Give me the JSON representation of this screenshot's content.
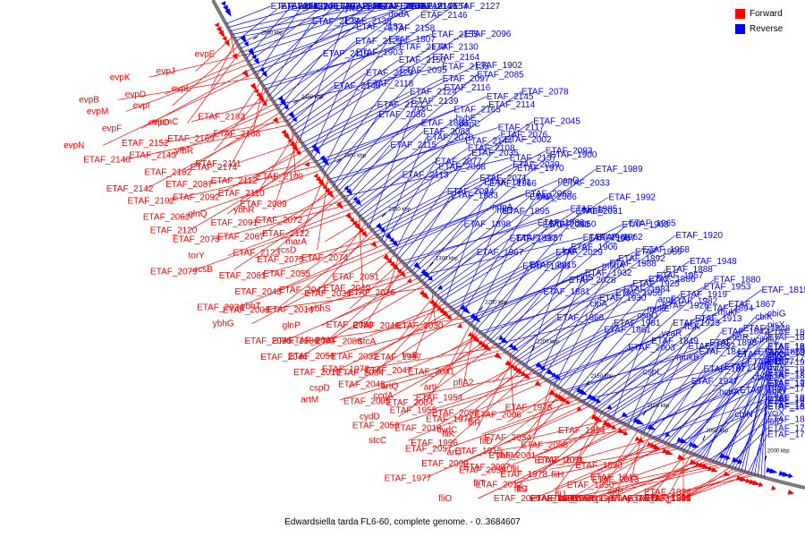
{
  "legend": {
    "forward_label": "Forward",
    "reverse_label": "Reverse",
    "forward_color": "#ff0000",
    "reverse_color": "#0000ff"
  },
  "caption": "Edwardsiella tarda FL6-60, complete genome. - 0..3684607",
  "scale_ticks": [
    {
      "text": "2500 kbp",
      "kbp": 2500
    },
    {
      "text": "2450 kbp",
      "kbp": 2450
    },
    {
      "text": "2400 kbp",
      "kbp": 2400
    },
    {
      "text": "2350 kbp",
      "kbp": 2350
    },
    {
      "text": "2300 kbp",
      "kbp": 2300
    },
    {
      "text": "2250 kbp",
      "kbp": 2250
    },
    {
      "text": "2200 kbp",
      "kbp": 2200
    },
    {
      "text": "2150 kbp",
      "kbp": 2150
    },
    {
      "text": "2100 kbp",
      "kbp": 2100
    },
    {
      "text": "2050 kbp",
      "kbp": 2050
    },
    {
      "text": "2000 kbp",
      "kbp": 2000
    }
  ],
  "labels": [
    {
      "t": "ETAF_2214",
      "s": "R"
    },
    {
      "t": "aroG",
      "s": "R"
    },
    {
      "t": "evpE",
      "s": "F"
    },
    {
      "t": "ETAF_2216",
      "s": "R"
    },
    {
      "t": "evpJ",
      "s": "F"
    },
    {
      "t": "evpL",
      "s": "F"
    },
    {
      "t": "evpI",
      "s": "F"
    },
    {
      "t": "sixA",
      "s": "R"
    },
    {
      "t": "evpO",
      "s": "F"
    },
    {
      "t": "evpK",
      "s": "F"
    },
    {
      "t": "evpD",
      "s": "F"
    },
    {
      "t": "ETAF_2191",
      "s": "R"
    },
    {
      "t": "evpM",
      "s": "F"
    },
    {
      "t": "evpF",
      "s": "F"
    },
    {
      "t": "ETAF_2182",
      "s": "R"
    },
    {
      "t": "ETAF_2193",
      "s": "R"
    },
    {
      "t": "evpN",
      "s": "F"
    },
    {
      "t": "evpB",
      "s": "F"
    },
    {
      "t": "ETAF_2173",
      "s": "R"
    },
    {
      "t": "ETAF_2186",
      "s": "R"
    },
    {
      "t": "ETAF_2196",
      "s": "R"
    },
    {
      "t": "ETAF_2183",
      "s": "F"
    },
    {
      "t": "ETAF_2168",
      "s": "F"
    },
    {
      "t": "yfbR",
      "s": "F"
    },
    {
      "t": "ETAF_2190",
      "s": "R"
    },
    {
      "t": "ETAF_2174",
      "s": "F"
    },
    {
      "t": "yrbU",
      "s": "R"
    },
    {
      "t": "ETAF_2153",
      "s": "R"
    },
    {
      "t": "mnmC",
      "s": "F"
    },
    {
      "t": "dedA",
      "s": "R"
    },
    {
      "t": "ETAF_2169",
      "s": "F"
    },
    {
      "t": "ETAF_2143",
      "s": "F"
    },
    {
      "t": "ETAF_2154",
      "s": "R"
    },
    {
      "t": "ubiX",
      "s": "R"
    },
    {
      "t": "ETAF_2162",
      "s": "F"
    },
    {
      "t": "ETAF_2149",
      "s": "R"
    },
    {
      "t": "ETAF_2136",
      "s": "R"
    },
    {
      "t": "ETAF_2170",
      "s": "R"
    },
    {
      "t": "ETAF_2155",
      "s": "R"
    },
    {
      "t": "ETAF_2142",
      "s": "F"
    },
    {
      "t": "ETAF_2128",
      "s": "R"
    },
    {
      "t": "yfcD",
      "s": "R"
    },
    {
      "t": "ETAF_2160",
      "s": "R"
    },
    {
      "t": "ETAF_2147",
      "s": "R"
    },
    {
      "t": "ETAF_2135",
      "s": "R"
    },
    {
      "t": "ETAF_2119",
      "s": "R"
    },
    {
      "t": "ETAF_2152",
      "s": "F"
    },
    {
      "t": "ETAF_2140",
      "s": "F"
    },
    {
      "t": "ETAF_2125",
      "s": "R"
    },
    {
      "t": "ETAF_2109",
      "s": "F"
    },
    {
      "t": "ETAF_2158",
      "s": "R"
    },
    {
      "t": "ETAF_2146",
      "s": "R"
    },
    {
      "t": "ETAF_2127",
      "s": "R"
    },
    {
      "t": "ETAF_2110",
      "s": "F"
    },
    {
      "t": "ybhR",
      "s": "F"
    },
    {
      "t": "ETAF_2148",
      "s": "R"
    },
    {
      "t": "ETAF_2129",
      "s": "R"
    },
    {
      "t": "ETAF_2111",
      "s": "F"
    },
    {
      "t": "ETAF_2150",
      "s": "R"
    },
    {
      "t": "ETAF_2130",
      "s": "R"
    },
    {
      "t": "ETAF_2112",
      "s": "F"
    },
    {
      "t": "ETAF_2092",
      "s": "F"
    },
    {
      "t": "ETAF_2096",
      "s": "R"
    },
    {
      "t": "glnQ",
      "s": "F"
    },
    {
      "t": "ETAF_2138",
      "s": "R"
    },
    {
      "t": "ETAF_2120",
      "s": "F"
    },
    {
      "t": "ETAF_2087",
      "s": "F"
    },
    {
      "t": "ETAF_2121",
      "s": "R"
    },
    {
      "t": "ETAF_2102",
      "s": "F"
    },
    {
      "t": "ETAF_2062",
      "s": "F"
    },
    {
      "t": "ETAF_2122",
      "s": "F"
    },
    {
      "t": "rcsD",
      "s": "F"
    },
    {
      "t": "ETAF_2089",
      "s": "F"
    },
    {
      "t": "ETAF_2072",
      "s": "F"
    },
    {
      "t": "ETAF_2067",
      "s": "F"
    },
    {
      "t": "ETAF_2123",
      "s": "F"
    },
    {
      "t": "rcsB",
      "s": "F"
    },
    {
      "t": "ETAF_2091",
      "s": "F"
    },
    {
      "t": "ETAF_2073",
      "s": "F"
    },
    {
      "t": "torY",
      "s": "F"
    },
    {
      "t": "ETAF_2124",
      "s": "R"
    },
    {
      "t": "ETAF_2097",
      "s": "R"
    },
    {
      "t": "ETAF_2079",
      "s": "F"
    },
    {
      "t": "ETAF_2049",
      "s": "F"
    },
    {
      "t": "marA",
      "s": "F"
    },
    {
      "t": "ETAF_2074",
      "s": "F"
    },
    {
      "t": "ETAF_2055",
      "s": "F"
    },
    {
      "t": "ETAF_2042",
      "s": "F"
    },
    {
      "t": "ybhT",
      "s": "F"
    },
    {
      "t": "ETAF_2075",
      "s": "F"
    },
    {
      "t": "ETAF_2061",
      "s": "F"
    },
    {
      "t": "ETAF_2043",
      "s": "F"
    },
    {
      "t": "ETAF_2034",
      "s": "F"
    },
    {
      "t": "ybhG",
      "s": "F"
    },
    {
      "t": "ETAF_2051",
      "s": "F"
    },
    {
      "t": "ETAF_2026",
      "s": "F"
    },
    {
      "t": "ybhS",
      "s": "F"
    },
    {
      "t": "ETAF_2080",
      "s": "F"
    },
    {
      "t": "ETAF_2064",
      "s": "F"
    },
    {
      "t": "ETAF_2036",
      "s": "F"
    },
    {
      "t": "ETAF_2014",
      "s": "F"
    },
    {
      "t": "glnP",
      "s": "F"
    },
    {
      "t": "ETAF_2065",
      "s": "F"
    },
    {
      "t": "ETAF_2044",
      "s": "F"
    },
    {
      "t": "ETAF_2008",
      "s": "F"
    },
    {
      "t": "ETAF_2030",
      "s": "F"
    },
    {
      "t": "stcA",
      "s": "F"
    },
    {
      "t": "ETAF_1997",
      "s": "F"
    },
    {
      "t": "ETAF_2084",
      "s": "F"
    },
    {
      "t": "ETAF_2046",
      "s": "F"
    },
    {
      "t": "ETAF_2088",
      "s": "F"
    },
    {
      "t": "ETAF_2032",
      "s": "F"
    },
    {
      "t": "ETAF_2010",
      "s": "F"
    },
    {
      "t": "cspD",
      "s": "F"
    },
    {
      "t": "ETAF_1980",
      "s": "F"
    },
    {
      "t": "ETAF_2056",
      "s": "F"
    },
    {
      "t": "ETAF_2041",
      "s": "F"
    },
    {
      "t": "artI",
      "s": "F"
    },
    {
      "t": "ETAF_2004",
      "s": "F"
    },
    {
      "t": "trxB",
      "s": "F"
    },
    {
      "t": "ETAF_2047",
      "s": "F"
    },
    {
      "t": "artQ",
      "s": "F"
    },
    {
      "t": "ETAF_2005",
      "s": "F"
    },
    {
      "t": "cydD",
      "s": "F"
    },
    {
      "t": "ETAF_1972",
      "s": "F"
    },
    {
      "t": "ETAF_2048",
      "s": "F"
    },
    {
      "t": "artM",
      "s": "F"
    },
    {
      "t": "ETAF_2006",
      "s": "F"
    },
    {
      "t": "cydC",
      "s": "F"
    },
    {
      "t": "pflA2",
      "s": "F"
    },
    {
      "t": "ETAF_1954",
      "s": "F"
    },
    {
      "t": "ETAF_2052",
      "s": "F"
    },
    {
      "t": "ETAF_2018",
      "s": "F"
    },
    {
      "t": "ETAF_1996",
      "s": "F"
    },
    {
      "t": "ccdA",
      "s": "F"
    },
    {
      "t": "ETAF_1955",
      "s": "F"
    },
    {
      "t": "ETAF_2053",
      "s": "F"
    },
    {
      "t": "stcC",
      "s": "F"
    },
    {
      "t": "ETAF_2001",
      "s": "F"
    },
    {
      "t": "ETAF_1973",
      "s": "F"
    },
    {
      "t": "fliR",
      "s": "F"
    },
    {
      "t": "ETAF_2054",
      "s": "F"
    },
    {
      "t": "artJ",
      "s": "F"
    },
    {
      "t": "ETAF_2007",
      "s": "F"
    },
    {
      "t": "ETAF_1974",
      "s": "F"
    },
    {
      "t": "fliK",
      "s": "F"
    },
    {
      "t": "ETAF_2057",
      "s": "F"
    },
    {
      "t": "ETAF_2009",
      "s": "F"
    },
    {
      "t": "ETAF_1977",
      "s": "F"
    },
    {
      "t": "ETAF_1924",
      "s": "F"
    },
    {
      "t": "ETAF_2058",
      "s": "F"
    },
    {
      "t": "ETAF_2011",
      "s": "F"
    },
    {
      "t": "ETAF_1978",
      "s": "F"
    },
    {
      "t": "fliJ",
      "s": "F"
    },
    {
      "t": "fliD",
      "s": "F"
    },
    {
      "t": "ybbM",
      "s": "F"
    },
    {
      "t": "ETAF_2059",
      "s": "F"
    },
    {
      "t": "ETAF_2012",
      "s": "F"
    },
    {
      "t": "fliO",
      "s": "F"
    },
    {
      "t": "ETAF_1915",
      "s": "F"
    },
    {
      "t": "ETAF_1890",
      "s": "F"
    },
    {
      "t": "ETAF_2013",
      "s": "F"
    },
    {
      "t": "fliJ",
      "s": "F"
    },
    {
      "t": "ETAF_1907",
      "s": "F"
    },
    {
      "t": "ETAF_1879",
      "s": "F"
    },
    {
      "t": "fliH",
      "s": "F"
    },
    {
      "t": "fliS",
      "s": "F"
    },
    {
      "t": "ETAF_1902",
      "s": "R"
    },
    {
      "t": "ETAF_1860",
      "s": "F"
    },
    {
      "t": "ETAF_2020",
      "s": "F"
    },
    {
      "t": "fliL",
      "s": "F"
    },
    {
      "t": "fliT",
      "s": "F"
    },
    {
      "t": "ETAF_1909",
      "s": "F"
    },
    {
      "t": "ETAF_1885",
      "s": "F"
    },
    {
      "t": "yciT",
      "s": "F"
    },
    {
      "t": "ETAF_1845",
      "s": "F"
    },
    {
      "t": "artP",
      "s": "F"
    },
    {
      "t": "fliM",
      "s": "F"
    },
    {
      "t": "cspG",
      "s": "F"
    },
    {
      "t": "ETAF_1903",
      "s": "R"
    },
    {
      "t": "ETAF_1875",
      "s": "F"
    },
    {
      "t": "ETAF_1850",
      "s": "F"
    },
    {
      "t": "ETAF_1836",
      "s": "F"
    },
    {
      "t": "ETAF_1904",
      "s": "F"
    },
    {
      "t": "ETAF_1856",
      "s": "F"
    },
    {
      "t": "ETAF_1841",
      "s": "F"
    },
    {
      "t": "ETAF_1824",
      "s": "F"
    },
    {
      "t": "ETAF_1846",
      "s": "F"
    },
    {
      "t": "ETAF_1833",
      "s": "F"
    },
    {
      "t": "ETAF_1807",
      "s": "R"
    },
    {
      "t": "ETAF_1835",
      "s": "F"
    },
    {
      "t": "ETAF_1808",
      "s": "R"
    },
    {
      "t": "pvuA",
      "s": "F"
    },
    {
      "t": "ETAF_2165",
      "s": "R"
    },
    {
      "t": "ETAF_2145",
      "s": "R"
    },
    {
      "t": "ETAF_2118",
      "s": "R"
    },
    {
      "t": "ETAF_2095",
      "s": "R"
    },
    {
      "t": "ETAF_2164",
      "s": "R"
    },
    {
      "t": "ETAF_2144",
      "s": "R"
    },
    {
      "t": "ETAF_2117",
      "s": "R"
    },
    {
      "t": "ETAF_2086",
      "s": "R"
    },
    {
      "t": "ETAF_2139",
      "s": "R"
    },
    {
      "t": "ETAF_2116",
      "s": "R"
    },
    {
      "t": "ETAF_2085",
      "s": "R"
    },
    {
      "t": "ETAF_2137",
      "s": "R"
    },
    {
      "t": "ETAF_2115",
      "s": "R"
    },
    {
      "t": "ETAF_2083",
      "s": "R"
    },
    {
      "t": "hybE",
      "s": "R"
    },
    {
      "t": "ETAF_2114",
      "s": "R"
    },
    {
      "t": "ETAF_2078",
      "s": "R"
    },
    {
      "t": "ETAF_2113",
      "s": "R"
    },
    {
      "t": "ETAF_2077",
      "s": "R"
    },
    {
      "t": "ETAF_2108",
      "s": "R"
    },
    {
      "t": "ETAF_2076",
      "s": "R"
    },
    {
      "t": "ETAF_2045",
      "s": "R"
    },
    {
      "t": "rcsC",
      "s": "R"
    },
    {
      "t": "ETAF_2094",
      "s": "R"
    },
    {
      "t": "ETAF_2071",
      "s": "R"
    },
    {
      "t": "ETAF_2039",
      "s": "R"
    },
    {
      "t": "ETAF_2093",
      "s": "R"
    },
    {
      "t": "ETAF_2070",
      "s": "R"
    },
    {
      "t": "papC",
      "s": "R"
    },
    {
      "t": "ndpA",
      "s": "R"
    },
    {
      "t": "ETAF_2069",
      "s": "R"
    },
    {
      "t": "papD",
      "s": "R"
    },
    {
      "t": "ETAF_2068",
      "s": "R"
    },
    {
      "t": "ETAF_2035",
      "s": "R"
    },
    {
      "t": "ETAF_2002",
      "s": "R"
    },
    {
      "t": "ETAF_1986",
      "s": "R"
    },
    {
      "t": "ETAF_1985",
      "s": "R"
    },
    {
      "t": "ETAF_1983",
      "s": "R"
    },
    {
      "t": "ETAF_1971",
      "s": "R"
    },
    {
      "t": "ETAF_1970",
      "s": "R"
    },
    {
      "t": "ETAF_1900",
      "s": "R"
    },
    {
      "t": "ETAF_1968",
      "s": "R"
    },
    {
      "t": "ETAF_1898",
      "s": "R"
    },
    {
      "t": "rhlE",
      "s": "R"
    },
    {
      "t": "ETAF_2066",
      "s": "R"
    },
    {
      "t": "ETAF_2033",
      "s": "R"
    },
    {
      "t": "ETAF_1989",
      "s": "R"
    },
    {
      "t": "ETAF_1967",
      "s": "R"
    },
    {
      "t": "ETAF_1897",
      "s": "R"
    },
    {
      "t": "ETAF_2063",
      "s": "R"
    },
    {
      "t": "ETAF_2031",
      "s": "R"
    },
    {
      "t": "ETAF_1992",
      "s": "R"
    },
    {
      "t": "ETAF_1966",
      "s": "R"
    },
    {
      "t": "ETAF_1896",
      "s": "R"
    },
    {
      "t": "ETAF_2029",
      "s": "R"
    },
    {
      "t": "ETAF_1987",
      "s": "R"
    },
    {
      "t": "ETAF_1963",
      "s": "R"
    },
    {
      "t": "ETAF_1895",
      "s": "R"
    },
    {
      "t": "fimA",
      "s": "R"
    },
    {
      "t": "ETAF_2028",
      "s": "R"
    },
    {
      "t": "msbA",
      "s": "R"
    },
    {
      "t": "ETAF_1959",
      "s": "R"
    },
    {
      "t": "ETAF_1887",
      "s": "R"
    },
    {
      "t": "ETAF_2050",
      "s": "R"
    },
    {
      "t": "rumB",
      "s": "R"
    },
    {
      "t": "ETAF_1956",
      "s": "R"
    },
    {
      "t": "ETAF_1886",
      "s": "R"
    },
    {
      "t": "ETAF_2015",
      "s": "R"
    },
    {
      "t": "lolA",
      "s": "R"
    },
    {
      "t": "ETAF_1962",
      "s": "R"
    },
    {
      "t": "ETAF_1965",
      "s": "R"
    },
    {
      "t": "ETAF_1926",
      "s": "R"
    },
    {
      "t": "ETAF_1881",
      "s": "R"
    },
    {
      "t": "clpS",
      "s": "R"
    },
    {
      "t": "ETAF_1988",
      "s": "R"
    },
    {
      "t": "ETAF_1958",
      "s": "R"
    },
    {
      "t": "ETAF_1920",
      "s": "R"
    },
    {
      "t": "ETAF_1868",
      "s": "R"
    },
    {
      "t": "clpA",
      "s": "R"
    },
    {
      "t": "ETAF_1984",
      "s": "R"
    },
    {
      "t": "ETAF_1957",
      "s": "R"
    },
    {
      "t": "ETAF_1948",
      "s": "R"
    },
    {
      "t": "ETAF_1906",
      "s": "R"
    },
    {
      "t": "ETAF_1861",
      "s": "R"
    },
    {
      "t": "csgD",
      "s": "R"
    },
    {
      "t": "ETAF_1982",
      "s": "R"
    },
    {
      "t": "ETAF_1953",
      "s": "R"
    },
    {
      "t": "ETAF_1932",
      "s": "R"
    },
    {
      "t": "ETAF_1892",
      "s": "R"
    },
    {
      "t": "ETAF_1849",
      "s": "R"
    },
    {
      "t": "ftsK",
      "s": "R"
    },
    {
      "t": "mukF",
      "s": "R"
    },
    {
      "t": "ETAF_1930",
      "s": "R"
    },
    {
      "t": "ETAF_1925",
      "s": "R"
    },
    {
      "t": "ETAF_1888",
      "s": "R"
    },
    {
      "t": "ETAF_1843",
      "s": "R"
    },
    {
      "t": "tetR",
      "s": "R"
    },
    {
      "t": "ETAF_1981",
      "s": "R"
    },
    {
      "t": "mukE",
      "s": "R"
    },
    {
      "t": "ETAF_1919",
      "s": "R"
    },
    {
      "t": "ETAF_1880",
      "s": "R"
    },
    {
      "t": "ETAF_1827",
      "s": "R"
    },
    {
      "t": "ETAF_2003",
      "s": "R"
    },
    {
      "t": "ycaR",
      "s": "R"
    },
    {
      "t": "ETAF_1913",
      "s": "R"
    },
    {
      "t": "ETAF_1867",
      "s": "R"
    },
    {
      "t": "ETAF_1815",
      "s": "R"
    },
    {
      "t": "cspL",
      "s": "R"
    },
    {
      "t": "mukB",
      "s": "R"
    },
    {
      "t": "ETAF_1893",
      "s": "R"
    },
    {
      "t": "ETAF_1848",
      "s": "R"
    },
    {
      "t": "cbiG",
      "s": "R"
    },
    {
      "t": "aroF",
      "s": "R"
    },
    {
      "t": "ETAF_1947",
      "s": "R"
    },
    {
      "t": "ETAF_1908",
      "s": "R"
    },
    {
      "t": "ETAF_1869",
      "s": "R"
    },
    {
      "t": "ETAF_1805",
      "s": "R"
    },
    {
      "t": "ETAF_1923",
      "s": "R"
    },
    {
      "t": "ETAF_1894",
      "s": "R"
    },
    {
      "t": "ETAF_1857",
      "s": "R"
    },
    {
      "t": "ETAF_1804",
      "s": "R"
    },
    {
      "t": "flIE",
      "s": "R"
    },
    {
      "t": "ETAF_1882",
      "s": "R"
    },
    {
      "t": "ETAF_1842",
      "s": "R"
    },
    {
      "t": "cbiK",
      "s": "R"
    },
    {
      "t": "ycbB",
      "s": "R"
    },
    {
      "t": "ETAF_1912",
      "s": "R"
    },
    {
      "t": "ETAF_1877",
      "s": "R"
    },
    {
      "t": "ETAF_1802",
      "s": "R"
    },
    {
      "t": "fliZ",
      "s": "R"
    },
    {
      "t": "pisX",
      "s": "R"
    },
    {
      "t": "ETAF_1884",
      "s": "R"
    },
    {
      "t": "hchA",
      "s": "R"
    },
    {
      "t": "cbiM",
      "s": "R"
    },
    {
      "t": "ETAF_1921",
      "s": "R"
    },
    {
      "t": "ETAF_1889",
      "s": "R"
    },
    {
      "t": "ETAF_1838",
      "s": "R"
    },
    {
      "t": "cbiN",
      "s": "R"
    },
    {
      "t": "ETAF_1899",
      "s": "R"
    },
    {
      "t": "lolC",
      "s": "R"
    },
    {
      "t": "ETAF_1834",
      "s": "R"
    },
    {
      "t": "cbiQ",
      "s": "R"
    },
    {
      "t": "yciH",
      "s": "R"
    },
    {
      "t": "lolD",
      "s": "R"
    },
    {
      "t": "ETAF_1832",
      "s": "R"
    },
    {
      "t": "cbiO",
      "s": "R"
    },
    {
      "t": "yciS",
      "s": "R"
    },
    {
      "t": "lolE",
      "s": "R"
    },
    {
      "t": "ETAF_1831",
      "s": "R"
    },
    {
      "t": "ETAF_1797",
      "s": "R"
    },
    {
      "t": "yciX",
      "s": "R"
    },
    {
      "t": "ETAF_1830",
      "s": "R"
    },
    {
      "t": "ETAF_1790",
      "s": "R"
    },
    {
      "t": "uvrY",
      "s": "R"
    },
    {
      "t": "ETAF_1826",
      "s": "R"
    },
    {
      "t": "ETAF_1787",
      "s": "R"
    },
    {
      "t": "ETAF_1825",
      "s": "R"
    },
    {
      "t": "ETAF_1786",
      "s": "R"
    },
    {
      "t": "ETAF_1785",
      "s": "R"
    },
    {
      "t": "ETAF_1784",
      "s": "R"
    },
    {
      "t": "ETAF_1773",
      "s": "R"
    }
  ]
}
